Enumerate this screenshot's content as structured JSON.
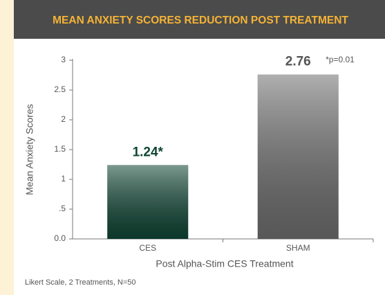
{
  "chart_data": {
    "type": "bar",
    "title": "MEAN ANXIETY SCORES REDUCTION POST TREATMENT",
    "y_label": "Mean Anxiety Scores",
    "x_label": "Post Alpha-Stim CES Treatment",
    "annotation": "*p=0.01",
    "footnote": "Likert Scale, 2 Treatments, N=50",
    "categories": [
      "CES",
      "SHAM"
    ],
    "values": [
      1.24,
      2.76
    ],
    "value_labels": [
      "1.24*",
      "2.76"
    ],
    "colors": [
      "#0f4534",
      "#6e6e6e"
    ],
    "label_colors": [
      "#0f4534",
      "#555555"
    ],
    "ylim": [
      0,
      3
    ],
    "yticks": [
      {
        "value": 0,
        "label": "0.0"
      },
      {
        "value": 0.5,
        "label": ".5"
      },
      1,
      1.5,
      2,
      2.5,
      3
    ]
  }
}
